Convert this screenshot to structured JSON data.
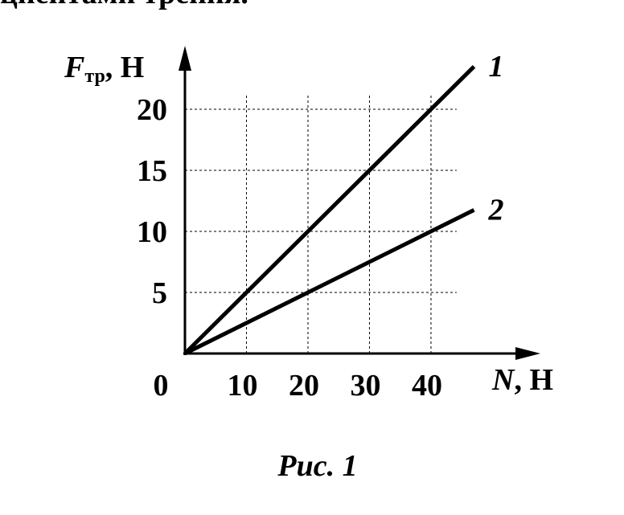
{
  "header": {
    "text": "циентами трения."
  },
  "chart_data": {
    "type": "line",
    "ylabel": {
      "symbol": "F",
      "subscript": "тр",
      "unit": ", Н"
    },
    "xlabel": {
      "symbol": "N",
      "unit": ", Н"
    },
    "x": [
      0,
      47
    ],
    "series": [
      {
        "name": "1",
        "color": "#000000",
        "values": [
          0,
          23.5
        ]
      },
      {
        "name": "2",
        "color": "#000000",
        "values": [
          0,
          11.75
        ]
      }
    ],
    "xlim": [
      0,
      57
    ],
    "ylim": [
      0,
      25
    ],
    "xticks": [
      0,
      10,
      20,
      30,
      40
    ],
    "yticks": [
      5,
      10,
      15,
      20
    ],
    "grid": true
  },
  "caption": {
    "text": "Рис. 1"
  }
}
